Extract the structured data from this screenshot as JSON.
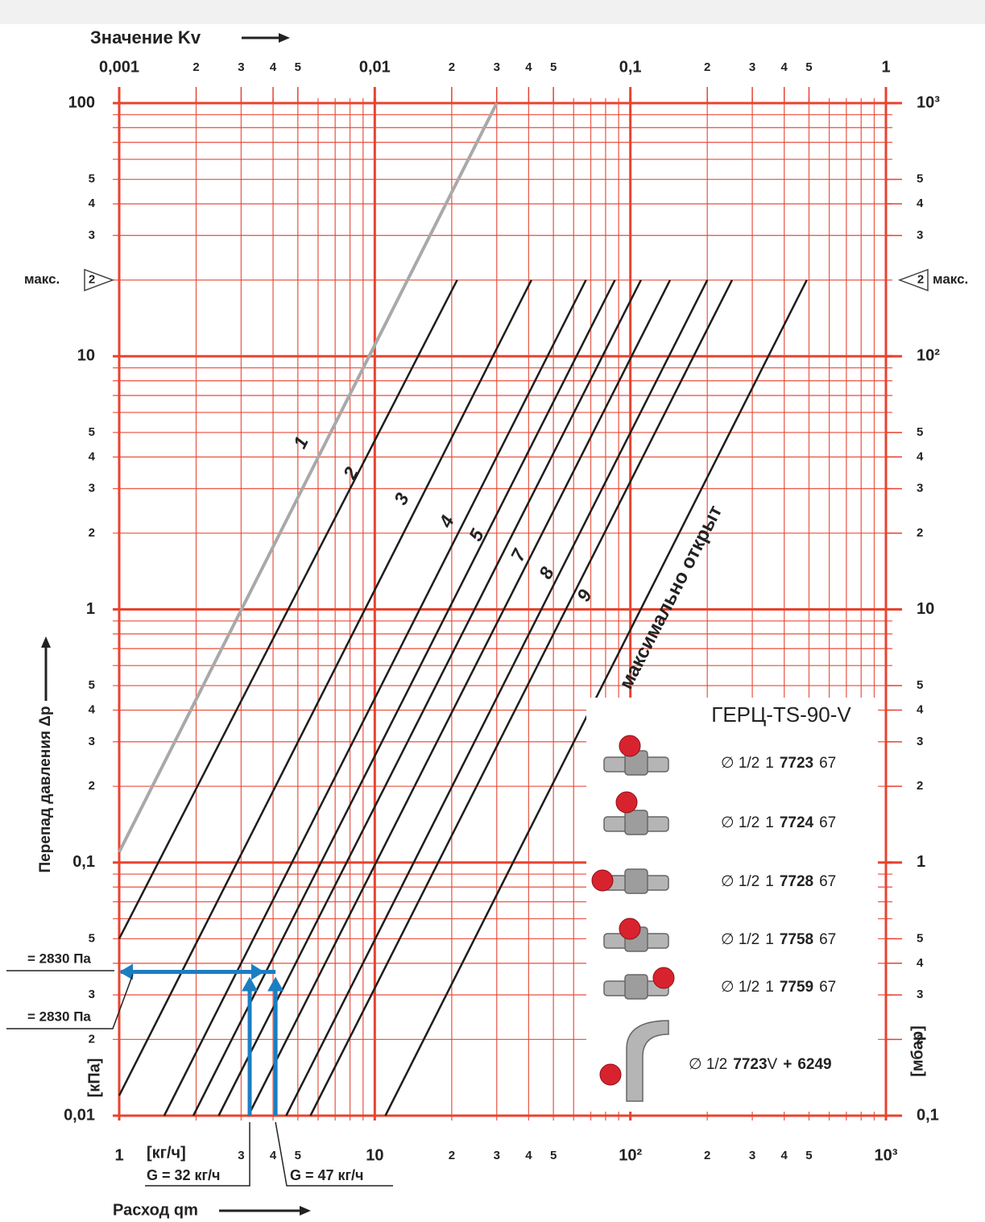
{
  "chart_data": {
    "type": "line",
    "log_scale": true,
    "grid": true,
    "x_label": "Расход qm",
    "x_unit": "[кг/ч]",
    "y_label": "Перепад давления Δp",
    "y_unit": "[кПа]",
    "y2_unit": "[мбар]",
    "top_axis": {
      "label": "Значение Kv",
      "lim": [
        0.001,
        1
      ],
      "ticks": [
        {
          "value": 0.001,
          "label": "0,001"
        },
        {
          "value": 0.002,
          "label": "2"
        },
        {
          "value": 0.003,
          "label": "3"
        },
        {
          "value": 0.004,
          "label": "4"
        },
        {
          "value": 0.005,
          "label": "5"
        },
        {
          "value": 0.01,
          "label": "0,01"
        },
        {
          "value": 0.02,
          "label": "2"
        },
        {
          "value": 0.03,
          "label": "3"
        },
        {
          "value": 0.04,
          "label": "4"
        },
        {
          "value": 0.05,
          "label": "5"
        },
        {
          "value": 0.1,
          "label": "0,1"
        },
        {
          "value": 0.2,
          "label": "2"
        },
        {
          "value": 0.3,
          "label": "3"
        },
        {
          "value": 0.4,
          "label": "4"
        },
        {
          "value": 0.5,
          "label": "5"
        },
        1
      ]
    },
    "xlim": [
      1,
      1000
    ],
    "xticks": [
      1,
      {
        "value": 2,
        "label": null
      },
      3,
      4,
      5,
      {
        "value": 6,
        "label": null
      },
      {
        "value": 7,
        "label": null
      },
      {
        "value": 8,
        "label": null
      },
      {
        "value": 9,
        "label": null
      },
      10,
      {
        "value": 20,
        "label": "2"
      },
      {
        "value": 30,
        "label": "3"
      },
      {
        "value": 40,
        "label": "4"
      },
      {
        "value": 50,
        "label": "5"
      },
      {
        "value": 60,
        "label": null
      },
      {
        "value": 70,
        "label": null
      },
      {
        "value": 80,
        "label": null
      },
      {
        "value": 90,
        "label": null
      },
      {
        "value": 100,
        "label": "10²"
      },
      {
        "value": 200,
        "label": "2"
      },
      {
        "value": 300,
        "label": "3"
      },
      {
        "value": 400,
        "label": "4"
      },
      {
        "value": 500,
        "label": "5"
      },
      {
        "value": 600,
        "label": null
      },
      {
        "value": 700,
        "label": null
      },
      {
        "value": 800,
        "label": null
      },
      {
        "value": 900,
        "label": null
      },
      {
        "value": 1000,
        "label": "10³"
      }
    ],
    "ylim": [
      0.01,
      100
    ],
    "yticks": [
      {
        "value": 0.01,
        "label": "0,01"
      },
      {
        "value": 0.02,
        "label": "2"
      },
      {
        "value": 0.03,
        "label": "3"
      },
      {
        "value": 0.04,
        "label": "4"
      },
      {
        "value": 0.05,
        "label": "5"
      },
      {
        "value": 0.06,
        "label": null
      },
      {
        "value": 0.07,
        "label": null
      },
      {
        "value": 0.08,
        "label": null
      },
      {
        "value": 0.09,
        "label": null
      },
      {
        "value": 0.1,
        "label": "0,1"
      },
      {
        "value": 0.2,
        "label": "2"
      },
      {
        "value": 0.3,
        "label": "3"
      },
      {
        "value": 0.4,
        "label": "4"
      },
      {
        "value": 0.5,
        "label": "5"
      },
      {
        "value": 0.6,
        "label": null
      },
      {
        "value": 0.7,
        "label": null
      },
      {
        "value": 0.8,
        "label": null
      },
      {
        "value": 0.9,
        "label": null
      },
      1,
      2,
      3,
      4,
      5,
      {
        "value": 6,
        "label": null
      },
      {
        "value": 7,
        "label": null
      },
      {
        "value": 8,
        "label": null
      },
      {
        "value": 9,
        "label": null
      },
      10,
      {
        "value": 20,
        "label": null
      },
      {
        "value": 30,
        "label": "3"
      },
      {
        "value": 40,
        "label": "4"
      },
      {
        "value": 50,
        "label": "5"
      },
      {
        "value": 60,
        "label": null
      },
      {
        "value": 70,
        "label": null
      },
      {
        "value": 80,
        "label": null
      },
      {
        "value": 90,
        "label": null
      },
      100
    ],
    "y2lim": [
      0.1,
      1000
    ],
    "y2ticks": [
      {
        "value": 0.1,
        "label": "0,1"
      },
      {
        "value": 0.2,
        "label": "2"
      },
      {
        "value": 0.3,
        "label": "3"
      },
      {
        "value": 0.4,
        "label": "4"
      },
      {
        "value": 0.5,
        "label": "5"
      },
      1,
      2,
      3,
      4,
      5,
      10,
      {
        "value": 20,
        "label": "2"
      },
      {
        "value": 30,
        "label": "3"
      },
      {
        "value": 40,
        "label": "4"
      },
      {
        "value": 50,
        "label": "5"
      },
      {
        "value": 100,
        "label": "10²"
      },
      {
        "value": 300,
        "label": "3"
      },
      {
        "value": 400,
        "label": "4"
      },
      {
        "value": 500,
        "label": "5"
      },
      {
        "value": 1000,
        "label": "10³"
      }
    ],
    "max_marker": {
      "value": 20,
      "label": "макс.",
      "symbol": "2"
    },
    "series": [
      {
        "name": "1",
        "color": "#a9a9a9",
        "x": [
          1,
          30
        ],
        "values": [
          0.11,
          100
        ]
      },
      {
        "name": "2",
        "color": "#1e1e1e",
        "x": [
          1,
          21
        ],
        "values": [
          0.05,
          20
        ]
      },
      {
        "name": "3",
        "color": "#1e1e1e",
        "x": [
          1,
          41
        ],
        "values": [
          0.012,
          20
        ]
      },
      {
        "name": "4",
        "color": "#1e1e1e",
        "x": [
          1.5,
          67
        ],
        "values": [
          0.01,
          20
        ]
      },
      {
        "name": "5",
        "color": "#1e1e1e",
        "x": [
          1.95,
          87
        ],
        "values": [
          0.01,
          20
        ]
      },
      {
        "name": null,
        "color": "#1e1e1e",
        "x": [
          2.45,
          110
        ],
        "values": [
          0.01,
          20
        ]
      },
      {
        "name": "7",
        "color": "#1e1e1e",
        "x": [
          3.2,
          143
        ],
        "values": [
          0.01,
          20
        ]
      },
      {
        "name": "8",
        "color": "#1e1e1e",
        "x": [
          4.5,
          200
        ],
        "values": [
          0.01,
          20
        ]
      },
      {
        "name": "9",
        "color": "#1e1e1e",
        "x": [
          5.6,
          250
        ],
        "values": [
          0.01,
          20
        ]
      },
      {
        "name": "максимально открыт",
        "color": "#1e1e1e",
        "x": [
          11,
          490
        ],
        "values": [
          0.01,
          20
        ]
      }
    ],
    "annotations": {
      "dp_labels": [
        "= 2830 Па",
        "= 2830 Па"
      ],
      "dp_value": 0.037,
      "flows": [
        {
          "label": "G = 32 кг/ч",
          "value": 3.24
        },
        {
          "label": "G = 47 кг/ч",
          "value": 4.09
        }
      ]
    },
    "product_box": {
      "title": "ГЕРЦ-TS-90-V",
      "rows": [
        {
          "size": "∅ 1/2",
          "num": "1",
          "code": "7723",
          "suffix": "67"
        },
        {
          "size": "∅ 1/2",
          "num": "1",
          "code": "7724",
          "suffix": "67"
        },
        {
          "size": "∅ 1/2",
          "num": "1",
          "code": "7728",
          "suffix": "67"
        },
        {
          "size": "∅ 1/2",
          "num": "1",
          "code": "7758",
          "suffix": "67"
        },
        {
          "size": "∅ 1/2",
          "num": "1",
          "code": "7759",
          "suffix": "67"
        },
        {
          "size": "∅ 1/2",
          "code": "7723",
          "suffix": "V",
          "code_plus": "+",
          "code2": "6249"
        }
      ]
    }
  }
}
